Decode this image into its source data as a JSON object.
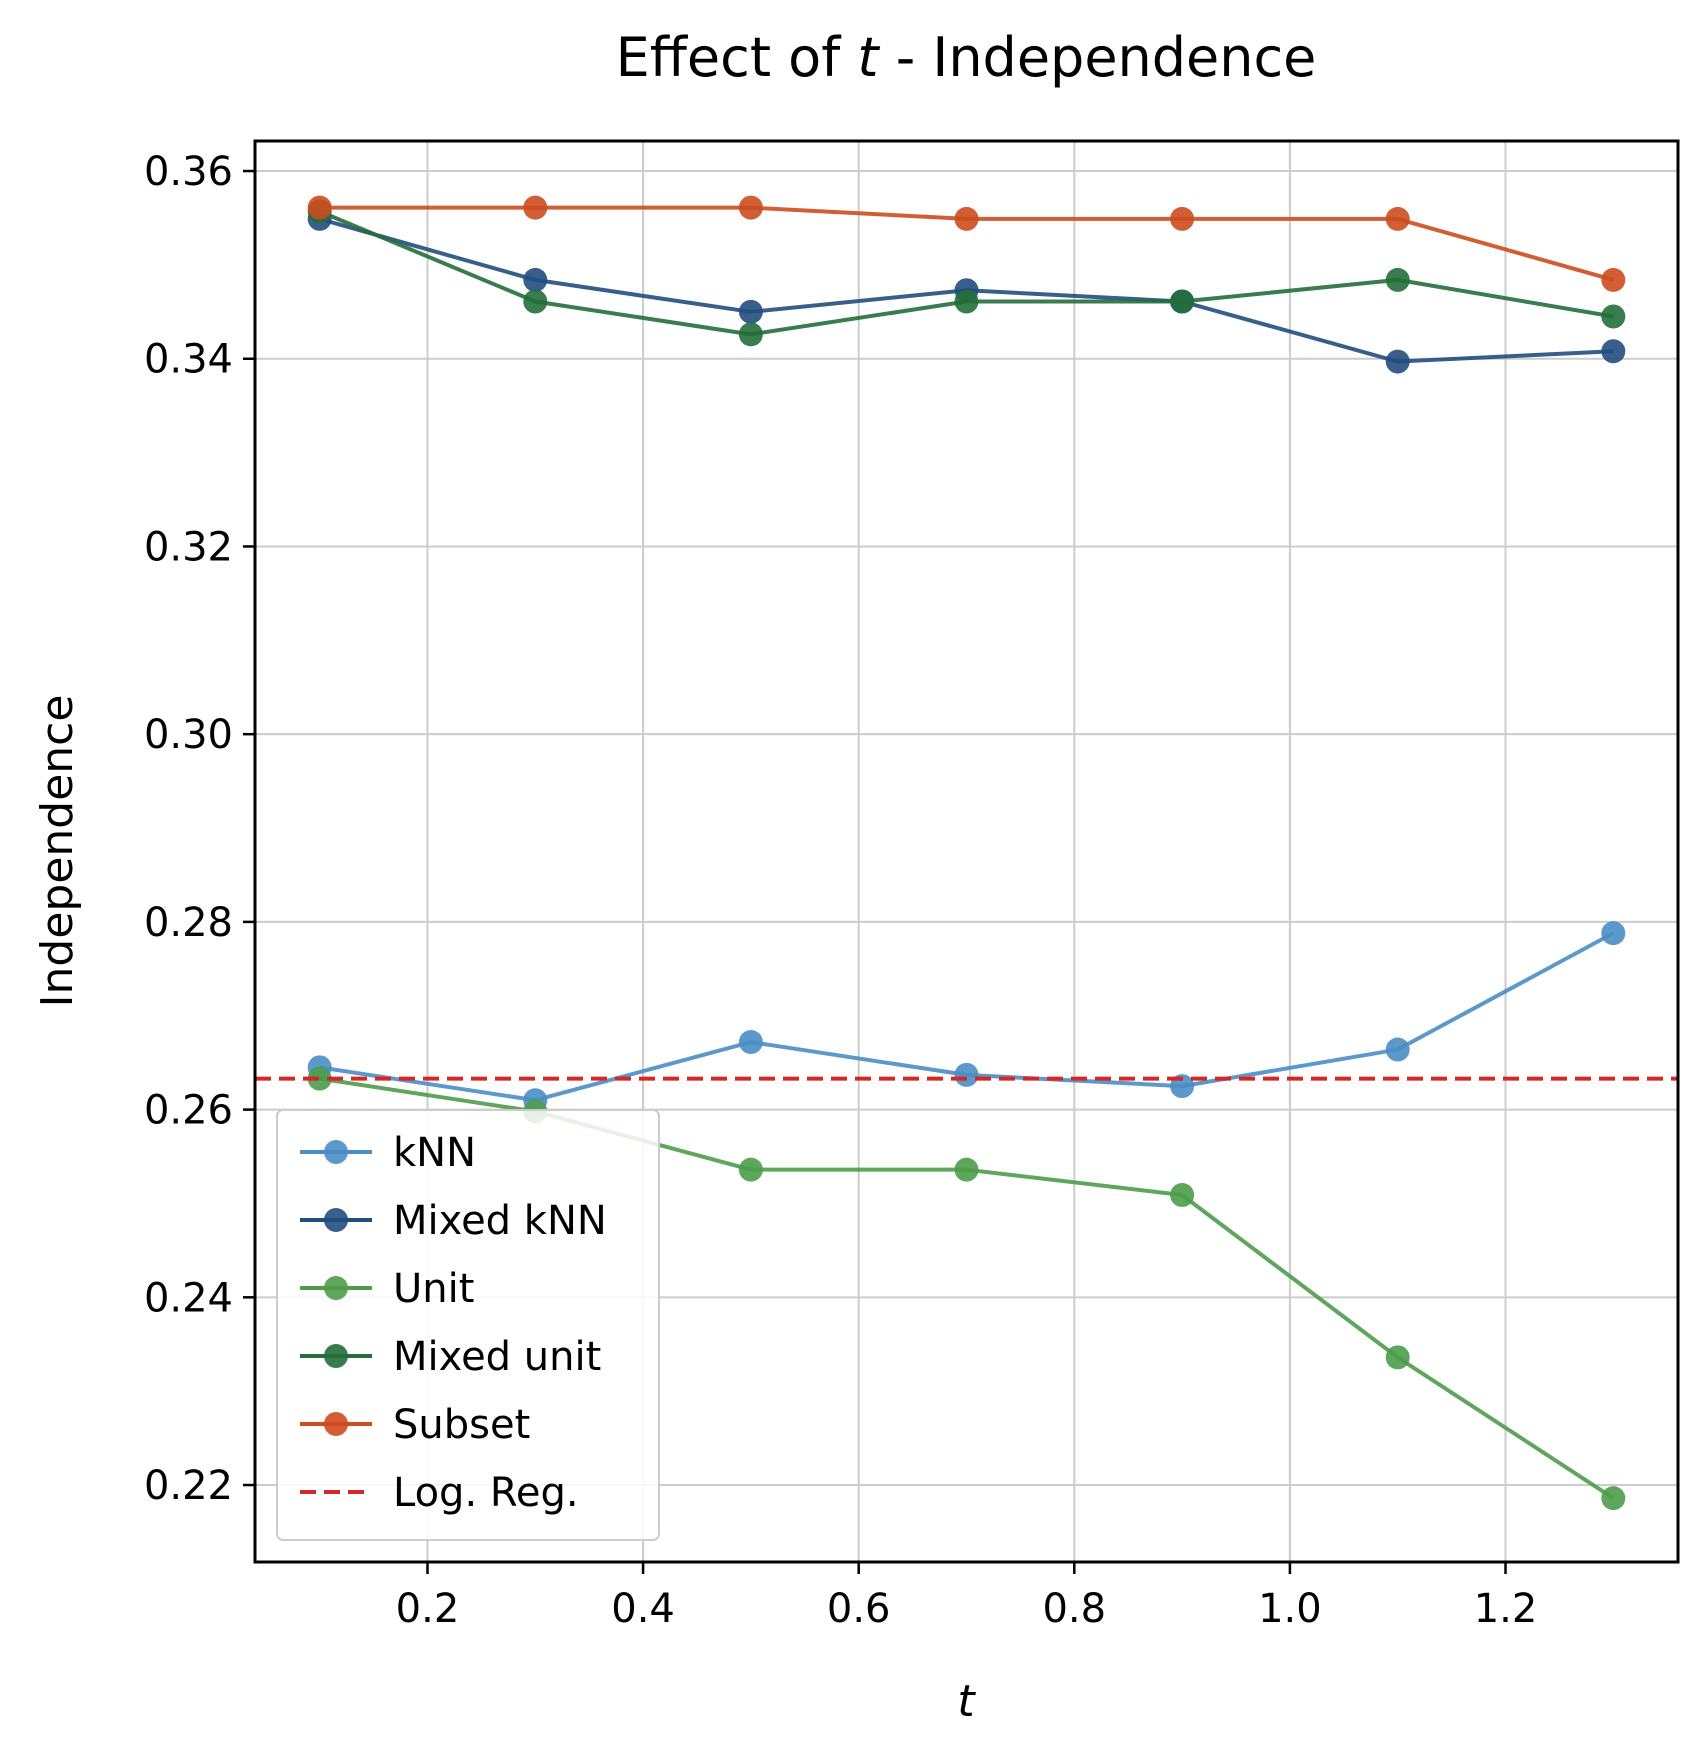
{
  "chart_data": {
    "type": "line",
    "title_prefix": "Effect of ",
    "title_var": "t",
    "title_suffix": " - Independence",
    "xlabel": "t",
    "ylabel": "Independence",
    "x": [
      0.1,
      0.3,
      0.5,
      0.7,
      0.9,
      1.1,
      1.3
    ],
    "xlim": [
      0.04,
      1.36
    ],
    "ylim": [
      0.2118,
      0.3632
    ],
    "xticks": [
      0.2,
      0.4,
      0.6,
      0.8,
      1.0,
      1.2
    ],
    "xtick_labels": [
      "0.2",
      "0.4",
      "0.6",
      "0.8",
      "1.0",
      "1.2"
    ],
    "yticks": [
      0.22,
      0.24,
      0.26,
      0.28,
      0.3,
      0.32,
      0.34,
      0.36
    ],
    "ytick_labels": [
      "0.22",
      "0.24",
      "0.26",
      "0.28",
      "0.30",
      "0.32",
      "0.34",
      "0.36"
    ],
    "grid": true,
    "legend_position": "lower-left",
    "series": [
      {
        "name": "kNN",
        "color": "#4a8ec4",
        "values": [
          0.2645,
          0.261,
          0.2672,
          0.2637,
          0.2625,
          0.2664,
          0.2788
        ]
      },
      {
        "name": "Mixed kNN",
        "color": "#224e80",
        "values": [
          0.3549,
          0.3484,
          0.345,
          0.3473,
          0.3461,
          0.3397,
          0.3408
        ]
      },
      {
        "name": "Unit",
        "color": "#4c9c4a",
        "values": [
          0.2633,
          0.2598,
          0.2536,
          0.2536,
          0.2509,
          0.2336,
          0.2186
        ]
      },
      {
        "name": "Mixed unit",
        "color": "#236e3a",
        "values": [
          0.3557,
          0.3461,
          0.3426,
          0.3461,
          0.3461,
          0.3484,
          0.3445
        ]
      },
      {
        "name": "Subset",
        "color": "#cc4c1e",
        "values": [
          0.3561,
          0.3561,
          0.3561,
          0.3549,
          0.3549,
          0.3549,
          0.3484
        ]
      }
    ],
    "reference_lines": [
      {
        "name": "Log. Reg.",
        "color": "#d62728",
        "style": "dashed",
        "y": 0.2633
      }
    ]
  }
}
